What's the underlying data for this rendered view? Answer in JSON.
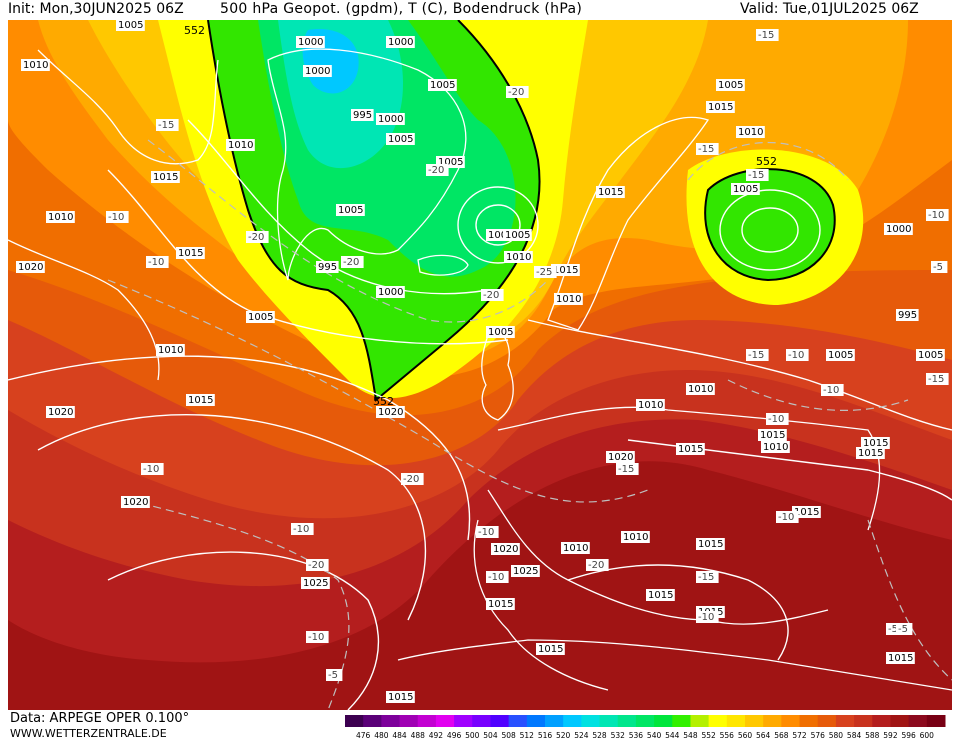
{
  "header": {
    "init": "Init: Mon,30JUN2025 06Z",
    "title": "500 hPa Geopot. (gpdm), T (C), Bodendruck (hPa)",
    "valid": "Valid: Tue,01JUL2025 06Z"
  },
  "footer": {
    "data_source": "Data: ARPEGE OPER 0.100°",
    "website": "WWW.WETTERZENTRALE.DE"
  },
  "colors": {
    "land_outline": "#ffffff",
    "isobar": "#ffffff",
    "isotherm": "#bfbfbf",
    "contour_552": "#000000"
  },
  "colorbar": {
    "unit": "gpdm",
    "levels": [
      476,
      480,
      484,
      488,
      492,
      496,
      500,
      504,
      508,
      512,
      516,
      520,
      524,
      528,
      532,
      536,
      540,
      544,
      548,
      552,
      556,
      560,
      564,
      568,
      572,
      576,
      580,
      584,
      588,
      592,
      596,
      600
    ],
    "colors": [
      "#3c0050",
      "#5a0078",
      "#7d009b",
      "#a000b4",
      "#c300d2",
      "#e100f0",
      "#a000ff",
      "#7800ff",
      "#5000ff",
      "#2850ff",
      "#0078ff",
      "#00a0ff",
      "#00c8ff",
      "#00e1e1",
      "#00e6b4",
      "#00e68c",
      "#00e664",
      "#00e63c",
      "#32f000",
      "#b4f000",
      "#ffff00",
      "#ffe600",
      "#ffc800",
      "#ffaa00",
      "#ff8c00",
      "#f06e00",
      "#e65a0a",
      "#d7411e",
      "#c8321e",
      "#b41e1e",
      "#a01414",
      "#8c0a1e",
      "#780014"
    ]
  },
  "map": {
    "geopotential_label_552": "552",
    "isobar_labels": [
      "1005",
      "1000",
      "1000",
      "1000",
      "1010",
      "1005",
      "995",
      "1000",
      "1005",
      "1005",
      "1005",
      "1000",
      "1005",
      "1010",
      "995",
      "1000",
      "1005",
      "1005",
      "1010",
      "1010",
      "1015",
      "1020",
      "1015",
      "1010",
      "1015",
      "1015",
      "1010",
      "1015",
      "1005",
      "1010",
      "1005",
      "1000",
      "995",
      "1005",
      "1005",
      "1010",
      "1010",
      "1015",
      "1020",
      "1020",
      "1025",
      "1020",
      "1020",
      "1015",
      "1015",
      "1010",
      "1010",
      "1015",
      "1015",
      "1015",
      "1015",
      "1015",
      "1015",
      "1015",
      "1015",
      "1015",
      "1025",
      "1010",
      "1015",
      "1020"
    ],
    "isotherm_labels": [
      "-15",
      "-15",
      "-20",
      "-20",
      "-15",
      "-10",
      "-10",
      "-20",
      "-20",
      "-20",
      "-20",
      "-25",
      "-10",
      "-20",
      "-15",
      "-15",
      "-10",
      "-10",
      "-10",
      "-10",
      "-10",
      "-20",
      "-10",
      "-15",
      "-10",
      "-15",
      "-10",
      "-10",
      "-10",
      "-5",
      "-5",
      "-5",
      "-15",
      "-5"
    ]
  }
}
